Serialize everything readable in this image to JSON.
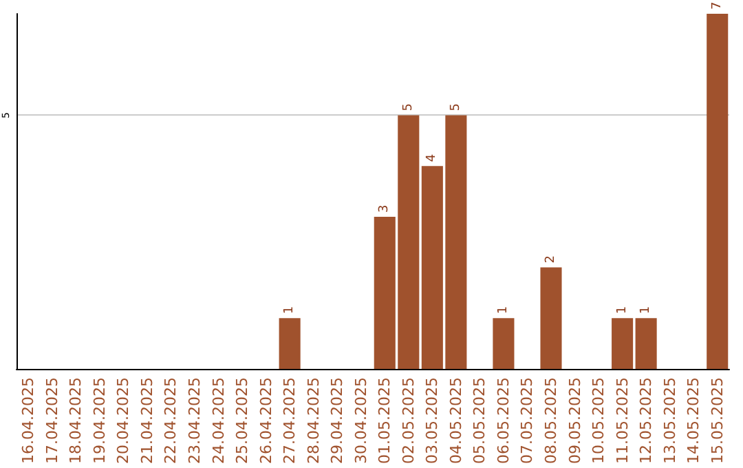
{
  "chart_data": {
    "type": "bar",
    "categories": [
      "16.04.2025",
      "17.04.2025",
      "18.04.2025",
      "19.04.2025",
      "20.04.2025",
      "21.04.2025",
      "22.04.2025",
      "23.04.2025",
      "24.04.2025",
      "25.04.2025",
      "26.04.2025",
      "27.04.2025",
      "28.04.2025",
      "29.04.2025",
      "30.04.2025",
      "01.05.2025",
      "02.05.2025",
      "03.05.2025",
      "04.05.2025",
      "05.05.2025",
      "06.05.2025",
      "07.05.2025",
      "08.05.2025",
      "09.05.2025",
      "10.05.2025",
      "11.05.2025",
      "12.05.2025",
      "13.05.2025",
      "14.05.2025",
      "15.05.2025"
    ],
    "values": [
      0,
      0,
      0,
      0,
      0,
      0,
      0,
      0,
      0,
      0,
      0,
      1,
      0,
      0,
      0,
      3,
      5,
      4,
      5,
      0,
      1,
      0,
      2,
      0,
      0,
      1,
      1,
      0,
      0,
      7
    ],
    "color": "#a0522d",
    "value_labels": [
      null,
      null,
      null,
      null,
      null,
      null,
      null,
      null,
      null,
      null,
      null,
      "1",
      null,
      null,
      null,
      "3",
      "5",
      "4",
      "5",
      null,
      "1",
      null,
      "2",
      null,
      null,
      "1",
      "1",
      null,
      null,
      "7"
    ],
    "ylim": [
      0,
      7
    ],
    "yticks": [
      5
    ],
    "grid": "y"
  }
}
